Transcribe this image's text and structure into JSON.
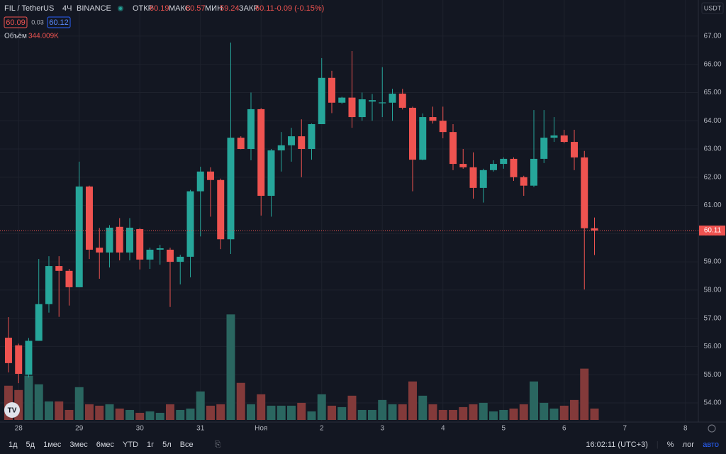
{
  "chart_data": {
    "type": "candlestick",
    "title": "FIL / TetherUS",
    "interval": "4Ч",
    "exchange": "BINANCE",
    "header_labels": {
      "open": "ОТКР",
      "high": "МАКС",
      "low": "МИН",
      "close": "ЗАКР"
    },
    "change_label": "-0.09 (-0.15%)",
    "bid": 60.09,
    "spread": 0.03,
    "ask": 60.12,
    "currency": "USDT",
    "up_color": "#26a69a",
    "down_color": "#ef5350",
    "open": [
      56.31,
      56.04,
      55.0,
      56.2,
      57.5,
      58.85,
      58.68,
      58.1,
      61.67,
      59.5,
      59.33,
      60.24,
      59.33,
      60.16,
      59.08,
      59.43,
      59.43,
      59.0,
      59.18,
      61.5,
      62.2,
      61.9,
      59.8,
      63.4,
      63.0,
      64.41,
      61.34,
      62.95,
      63.13,
      63.45,
      63.0,
      63.88,
      65.52,
      64.64,
      64.82,
      64.13,
      64.68,
      64.62,
      64.64,
      64.96,
      64.46,
      62.62,
      64.13,
      64.0,
      63.6,
      62.47,
      62.35,
      61.62,
      62.25,
      62.47,
      62.65,
      62.0,
      61.7,
      62.65,
      63.4,
      63.48,
      63.25,
      62.7,
      60.19
    ],
    "high": [
      57.04,
      56.1,
      56.3,
      59.1,
      59.2,
      59.2,
      58.75,
      62.55,
      61.7,
      60.2,
      60.3,
      60.55,
      60.55,
      60.2,
      59.5,
      59.6,
      59.5,
      59.25,
      61.55,
      62.37,
      62.35,
      61.95,
      66.77,
      63.45,
      65.0,
      64.45,
      63.0,
      63.6,
      63.75,
      64.05,
      63.9,
      66.22,
      65.77,
      64.85,
      66.47,
      65.0,
      64.95,
      65.9,
      65.13,
      65.13,
      64.5,
      64.26,
      64.5,
      64.5,
      63.88,
      63.0,
      62.88,
      62.3,
      62.6,
      62.7,
      62.7,
      62.05,
      64.38,
      64.38,
      64.13,
      63.68,
      63.68,
      62.93,
      60.57
    ],
    "low": [
      55.08,
      54.7,
      54.9,
      56.2,
      57.2,
      57.05,
      57.45,
      58.1,
      59.1,
      58.4,
      58.8,
      59.05,
      59.05,
      58.73,
      58.75,
      58.9,
      57.4,
      58.2,
      58.45,
      59.9,
      60.6,
      59.45,
      59.28,
      62.99,
      62.6,
      60.64,
      60.6,
      62.2,
      62.55,
      62.0,
      62.62,
      63.88,
      64.27,
      64.6,
      63.75,
      64.0,
      64.0,
      64.13,
      64.0,
      64.4,
      61.5,
      62.6,
      63.9,
      63.38,
      62.25,
      62.3,
      61.24,
      61.1,
      62.2,
      62.3,
      61.87,
      61.34,
      61.65,
      62.5,
      63.25,
      63.2,
      62.25,
      58.02,
      59.24
    ],
    "close": [
      55.41,
      55.03,
      56.2,
      57.5,
      58.85,
      58.68,
      58.1,
      61.67,
      59.43,
      59.33,
      60.21,
      59.33,
      60.21,
      59.08,
      59.43,
      59.48,
      59.0,
      59.18,
      61.5,
      62.2,
      61.9,
      59.8,
      63.4,
      63.0,
      64.41,
      61.34,
      62.95,
      63.13,
      63.45,
      63.0,
      63.88,
      65.52,
      64.64,
      64.82,
      64.13,
      64.76,
      64.73,
      64.65,
      64.96,
      64.46,
      62.62,
      64.13,
      64.0,
      63.6,
      62.47,
      62.35,
      61.62,
      62.25,
      62.47,
      62.65,
      62.0,
      61.7,
      62.65,
      63.4,
      63.48,
      63.25,
      62.7,
      60.19,
      60.11
    ],
    "volume": {
      "name": "Объём",
      "value_label": "344.009K",
      "up_color": "#2a6660",
      "down_color": "#833a3a",
      "values": [
        1032,
        903,
        1333,
        1075,
        559,
        559,
        301,
        989,
        473,
        430,
        473,
        344,
        301,
        215,
        258,
        215,
        473,
        301,
        344,
        860,
        430,
        473,
        3182,
        1118,
        473,
        774,
        430,
        430,
        430,
        516,
        258,
        774,
        430,
        387,
        731,
        301,
        301,
        602,
        473,
        473,
        1161,
        731,
        473,
        301,
        301,
        387,
        473,
        516,
        258,
        301,
        344,
        473,
        1161,
        516,
        344,
        430,
        602,
        1548,
        344.009
      ]
    },
    "xlim": [
      -0.84,
      68.28
    ],
    "xticks": [
      {
        "value": 1,
        "label": "28"
      },
      {
        "value": 7,
        "label": "29"
      },
      {
        "value": 13,
        "label": "30"
      },
      {
        "value": 19,
        "label": "31"
      },
      {
        "value": 25,
        "label": "Ноя"
      },
      {
        "value": 31,
        "label": "2"
      },
      {
        "value": 37,
        "label": "3"
      },
      {
        "value": 43,
        "label": "4"
      },
      {
        "value": 49,
        "label": "5"
      },
      {
        "value": 55,
        "label": "6"
      },
      {
        "value": 61,
        "label": "7"
      },
      {
        "value": 67,
        "label": "8"
      }
    ],
    "ylim": [
      53.32,
      68.28
    ],
    "yticks": [
      {
        "value": 54,
        "label": "54.00"
      },
      {
        "value": 55,
        "label": "55.00"
      },
      {
        "value": 56,
        "label": "56.00"
      },
      {
        "value": 57,
        "label": "57.00"
      },
      {
        "value": 58,
        "label": "58.00"
      },
      {
        "value": 59,
        "label": "59.00"
      },
      {
        "value": 60,
        "label": "60.00"
      },
      {
        "value": 61,
        "label": "61.00"
      },
      {
        "value": 62,
        "label": "62.00"
      },
      {
        "value": 63,
        "label": "63.00"
      },
      {
        "value": 64,
        "label": "64.00"
      },
      {
        "value": 65,
        "label": "65.00"
      },
      {
        "value": 66,
        "label": "66.00"
      },
      {
        "value": 67,
        "label": "67.00"
      }
    ],
    "grid": true,
    "ranges": [
      "1д",
      "5д",
      "1мес",
      "3мес",
      "6мес",
      "YTD",
      "1г",
      "5л",
      "Все"
    ],
    "time": "16:02:11 (UTC+3)",
    "scale_options": [
      "%",
      "лог",
      "авто"
    ]
  }
}
